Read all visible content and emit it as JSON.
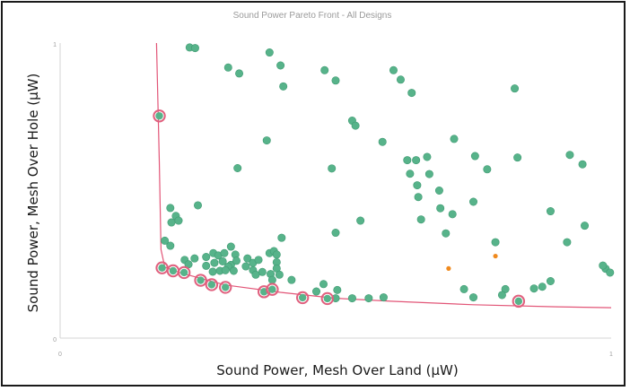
{
  "chart_data": {
    "type": "scatter",
    "title": "Sound Power Pareto Front - All Designs",
    "xlabel": "Sound Power, Mesh Over Land (µW)",
    "ylabel": "Sound Power, Mesh Over Hole (µW)",
    "xlim": [
      0,
      1
    ],
    "ylim": [
      0,
      1
    ],
    "x_tick_labels": [
      "0",
      "1"
    ],
    "y_tick_labels": [
      "0",
      "1"
    ],
    "grid": false,
    "legend": "none",
    "colors": {
      "designs": "#57b38a",
      "designs_edge": "#3f9a72",
      "pareto_ring": "#e0607e",
      "pareto_curve": "#e25577",
      "highlight": "#f08a1e",
      "axis": "#d4d4d4"
    },
    "series": [
      {
        "role": "designs",
        "points": [
          [
            0.235,
            0.985
          ],
          [
            0.245,
            0.983
          ],
          [
            0.305,
            0.917
          ],
          [
            0.325,
            0.897
          ],
          [
            0.38,
            0.968
          ],
          [
            0.4,
            0.924
          ],
          [
            0.405,
            0.853
          ],
          [
            0.48,
            0.908
          ],
          [
            0.5,
            0.873
          ],
          [
            0.605,
            0.908
          ],
          [
            0.618,
            0.876
          ],
          [
            0.638,
            0.831
          ],
          [
            0.825,
            0.846
          ],
          [
            0.53,
            0.737
          ],
          [
            0.536,
            0.72
          ],
          [
            0.375,
            0.67
          ],
          [
            0.585,
            0.665
          ],
          [
            0.63,
            0.603
          ],
          [
            0.646,
            0.603
          ],
          [
            0.666,
            0.614
          ],
          [
            0.715,
            0.675
          ],
          [
            0.753,
            0.617
          ],
          [
            0.83,
            0.612
          ],
          [
            0.925,
            0.621
          ],
          [
            0.948,
            0.589
          ],
          [
            0.493,
            0.575
          ],
          [
            0.635,
            0.557
          ],
          [
            0.67,
            0.556
          ],
          [
            0.775,
            0.572
          ],
          [
            0.322,
            0.576
          ],
          [
            0.648,
            0.518
          ],
          [
            0.688,
            0.5
          ],
          [
            0.75,
            0.462
          ],
          [
            0.65,
            0.478
          ],
          [
            0.69,
            0.44
          ],
          [
            0.712,
            0.42
          ],
          [
            0.89,
            0.43
          ],
          [
            0.952,
            0.381
          ],
          [
            0.2,
            0.441
          ],
          [
            0.21,
            0.414
          ],
          [
            0.202,
            0.392
          ],
          [
            0.215,
            0.398
          ],
          [
            0.25,
            0.45
          ],
          [
            0.545,
            0.398
          ],
          [
            0.655,
            0.402
          ],
          [
            0.5,
            0.357
          ],
          [
            0.7,
            0.355
          ],
          [
            0.79,
            0.325
          ],
          [
            0.92,
            0.325
          ],
          [
            0.2,
            0.313
          ],
          [
            0.19,
            0.33
          ],
          [
            0.402,
            0.34
          ],
          [
            0.226,
            0.265
          ],
          [
            0.244,
            0.27
          ],
          [
            0.265,
            0.275
          ],
          [
            0.233,
            0.25
          ],
          [
            0.31,
            0.31
          ],
          [
            0.278,
            0.288
          ],
          [
            0.287,
            0.28
          ],
          [
            0.298,
            0.288
          ],
          [
            0.318,
            0.283
          ],
          [
            0.38,
            0.288
          ],
          [
            0.388,
            0.295
          ],
          [
            0.393,
            0.283
          ],
          [
            0.337,
            0.243
          ],
          [
            0.31,
            0.248
          ],
          [
            0.32,
            0.262
          ],
          [
            0.295,
            0.26
          ],
          [
            0.305,
            0.242
          ],
          [
            0.265,
            0.245
          ],
          [
            0.28,
            0.255
          ],
          [
            0.34,
            0.27
          ],
          [
            0.35,
            0.23
          ],
          [
            0.277,
            0.225
          ],
          [
            0.29,
            0.228
          ],
          [
            0.3,
            0.23
          ],
          [
            0.35,
            0.255
          ],
          [
            0.393,
            0.257
          ],
          [
            0.393,
            0.236
          ],
          [
            0.36,
            0.265
          ],
          [
            0.315,
            0.228
          ],
          [
            0.398,
            0.215
          ],
          [
            0.367,
            0.224
          ],
          [
            0.382,
            0.217
          ],
          [
            0.355,
            0.215
          ],
          [
            0.385,
            0.197
          ],
          [
            0.42,
            0.197
          ],
          [
            0.478,
            0.183
          ],
          [
            0.465,
            0.158
          ],
          [
            0.503,
            0.163
          ],
          [
            0.5,
            0.135
          ],
          [
            0.53,
            0.135
          ],
          [
            0.56,
            0.135
          ],
          [
            0.587,
            0.138
          ],
          [
            0.733,
            0.166
          ],
          [
            0.808,
            0.166
          ],
          [
            0.86,
            0.168
          ],
          [
            0.89,
            0.193
          ],
          [
            0.875,
            0.174
          ],
          [
            0.802,
            0.146
          ],
          [
            0.75,
            0.138
          ],
          [
            0.99,
            0.235
          ],
          [
            0.998,
            0.222
          ],
          [
            0.985,
            0.246
          ]
        ]
      },
      {
        "role": "pareto",
        "points": [
          [
            0.18,
            0.753
          ],
          [
            0.185,
            0.238
          ],
          [
            0.205,
            0.228
          ],
          [
            0.225,
            0.222
          ],
          [
            0.255,
            0.196
          ],
          [
            0.275,
            0.181
          ],
          [
            0.3,
            0.172
          ],
          [
            0.37,
            0.157
          ],
          [
            0.385,
            0.165
          ],
          [
            0.44,
            0.137
          ],
          [
            0.485,
            0.134
          ],
          [
            0.832,
            0.125
          ]
        ]
      },
      {
        "role": "highlight",
        "points": [
          [
            0.705,
            0.236
          ],
          [
            0.79,
            0.278
          ]
        ]
      }
    ],
    "pareto_curve": [
      [
        0.175,
        1.0
      ],
      [
        0.18,
        0.6
      ],
      [
        0.183,
        0.3
      ],
      [
        0.19,
        0.24
      ],
      [
        0.22,
        0.22
      ],
      [
        0.3,
        0.18
      ],
      [
        0.4,
        0.155
      ],
      [
        0.5,
        0.135
      ],
      [
        0.6,
        0.125
      ],
      [
        0.75,
        0.113
      ],
      [
        0.9,
        0.106
      ],
      [
        1.0,
        0.103
      ]
    ]
  }
}
